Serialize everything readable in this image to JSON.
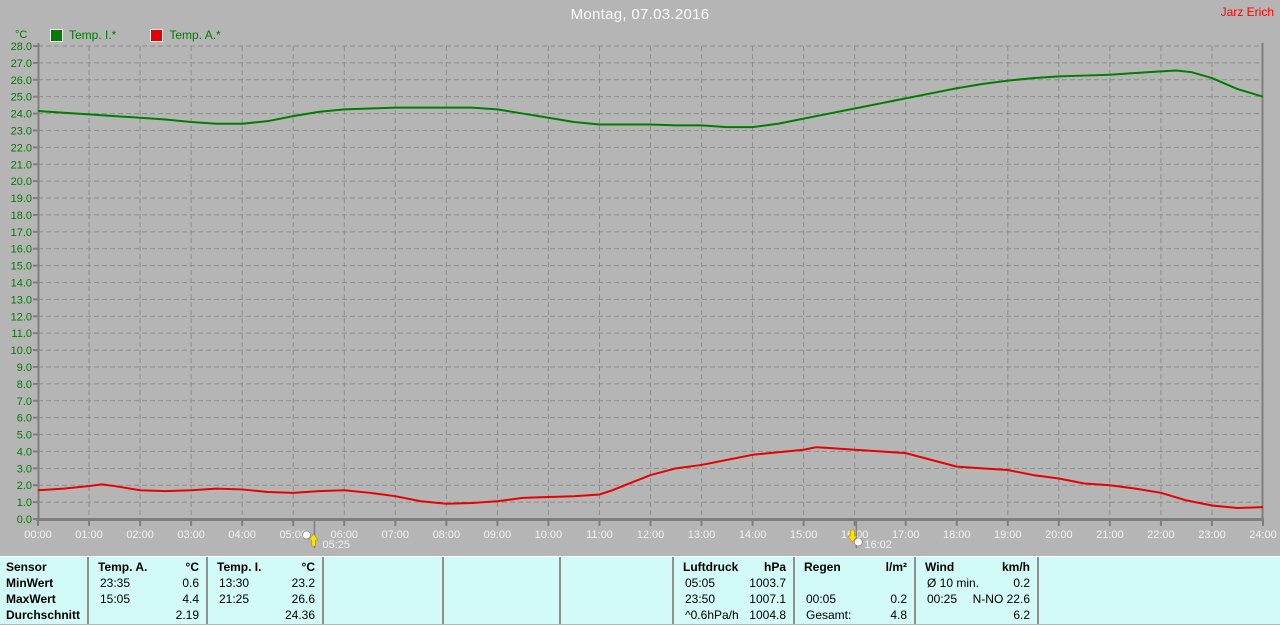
{
  "header": {
    "title": "Montag, 07.03.2016",
    "owner": "Jarz Erich"
  },
  "chart_data": {
    "type": "line",
    "title": "Montag, 07.03.2016",
    "unit": "°C",
    "ylabel": "°C",
    "ylim": [
      0,
      28
    ],
    "y_tick_step": 1.0,
    "grid": "dashed",
    "legend_position": "top-left",
    "x_hours_range": [
      0,
      24
    ],
    "x_tick_labels": [
      "00:00",
      "01:00",
      "02:00",
      "03:00",
      "04:00",
      "05:00",
      "06:00",
      "07:00",
      "08:00",
      "09:00",
      "10:00",
      "11:00",
      "12:00",
      "13:00",
      "14:00",
      "15:00",
      "16:00",
      "17:00",
      "18:00",
      "19:00",
      "20:00",
      "21:00",
      "22:00",
      "23:00",
      "24:00"
    ],
    "series": [
      {
        "name": "Temp. I.*",
        "color": "#007c00",
        "x": [
          0,
          0.5,
          1,
          1.5,
          2,
          2.5,
          3,
          3.5,
          4,
          4.5,
          5,
          5.5,
          6,
          6.5,
          7,
          7.5,
          8,
          8.5,
          9,
          9.5,
          10,
          10.5,
          11,
          11.5,
          12,
          12.5,
          13,
          13.5,
          14,
          14.5,
          15,
          15.5,
          16,
          16.5,
          17,
          17.5,
          18,
          18.5,
          19,
          19.5,
          20,
          20.5,
          21,
          21.5,
          22,
          22.3,
          22.6,
          23,
          23.5,
          24
        ],
        "values": [
          24.15,
          24.05,
          23.95,
          23.85,
          23.75,
          23.65,
          23.5,
          23.4,
          23.4,
          23.55,
          23.85,
          24.1,
          24.25,
          24.3,
          24.35,
          24.35,
          24.35,
          24.35,
          24.25,
          24.0,
          23.75,
          23.5,
          23.35,
          23.35,
          23.35,
          23.3,
          23.3,
          23.2,
          23.2,
          23.4,
          23.7,
          24.0,
          24.3,
          24.6,
          24.9,
          25.2,
          25.5,
          25.75,
          25.95,
          26.1,
          26.2,
          26.25,
          26.3,
          26.4,
          26.5,
          26.55,
          26.45,
          26.1,
          25.45,
          25.0
        ]
      },
      {
        "name": "Temp. A.*",
        "color": "#e60000",
        "x": [
          0,
          0.5,
          1,
          1.25,
          1.5,
          2,
          2.5,
          3,
          3.5,
          4,
          4.5,
          5,
          5.5,
          6,
          6.5,
          7,
          7.5,
          8,
          8.5,
          9,
          9.5,
          10,
          10.5,
          11,
          11.25,
          11.5,
          11.75,
          12,
          12.5,
          13,
          13.5,
          14,
          14.5,
          15,
          15.25,
          15.5,
          16,
          16.5,
          17,
          17.5,
          18,
          18.5,
          19,
          19.5,
          20,
          20.5,
          21,
          21.5,
          22,
          22.5,
          23,
          23.5,
          24
        ],
        "values": [
          1.7,
          1.8,
          1.95,
          2.05,
          1.95,
          1.7,
          1.65,
          1.7,
          1.8,
          1.75,
          1.6,
          1.55,
          1.65,
          1.7,
          1.55,
          1.35,
          1.05,
          0.9,
          0.95,
          1.05,
          1.25,
          1.3,
          1.35,
          1.45,
          1.7,
          2.0,
          2.3,
          2.6,
          3.0,
          3.2,
          3.5,
          3.8,
          3.95,
          4.1,
          4.25,
          4.2,
          4.1,
          4.0,
          3.9,
          3.5,
          3.1,
          3.0,
          2.9,
          2.6,
          2.4,
          2.1,
          2.0,
          1.8,
          1.55,
          1.1,
          0.8,
          0.65,
          0.7
        ]
      }
    ],
    "markers": [
      {
        "type": "sunrise",
        "time_label": "05:25",
        "hour": 5.4167
      },
      {
        "type": "sunset",
        "time_label": "16:02",
        "hour": 16.0333
      }
    ]
  },
  "stats_table": {
    "row_labels": [
      "Sensor",
      "MinWert",
      "MaxWert",
      "Durchschnitt"
    ],
    "columns": [
      {
        "id": "temp-a",
        "title": "Temp. A.",
        "unit": "°C",
        "rows": [
          [
            "23:35",
            "0.6"
          ],
          [
            "15:05",
            "4.4"
          ],
          [
            "",
            "2.19"
          ]
        ]
      },
      {
        "id": "temp-i",
        "title": "Temp. I.",
        "unit": "°C",
        "rows": [
          [
            "13:30",
            "23.2"
          ],
          [
            "21:25",
            "26.6"
          ],
          [
            "",
            "24.36"
          ]
        ]
      },
      {
        "id": "empty-1",
        "title": "",
        "unit": "",
        "rows": [
          [
            "",
            ""
          ],
          [
            "",
            ""
          ],
          [
            "",
            ""
          ]
        ]
      },
      {
        "id": "empty-2",
        "title": "",
        "unit": "",
        "rows": [
          [
            "",
            ""
          ],
          [
            "",
            ""
          ],
          [
            "",
            ""
          ]
        ]
      },
      {
        "id": "empty-3",
        "title": "",
        "unit": "",
        "rows": [
          [
            "",
            ""
          ],
          [
            "",
            ""
          ],
          [
            "",
            ""
          ]
        ]
      },
      {
        "id": "luftdruck",
        "title": "Luftdruck",
        "unit": "hPa",
        "rows": [
          [
            "05:05",
            "1003.7"
          ],
          [
            "23:50",
            "1007.1"
          ],
          [
            "^0.6hPa/h",
            "1004.8"
          ]
        ]
      },
      {
        "id": "regen",
        "title": "Regen",
        "unit": "l/m²",
        "rows": [
          [
            "",
            ""
          ],
          [
            "00:05",
            "0.2"
          ],
          [
            "Gesamt:",
            "4.8"
          ]
        ]
      },
      {
        "id": "wind",
        "title": "Wind",
        "unit": "km/h",
        "rows": [
          [
            "Ø 10 min.",
            "0.2"
          ],
          [
            "00:25",
            "N-NO 22.6"
          ],
          [
            "",
            "6.2"
          ]
        ]
      },
      {
        "id": "empty-4",
        "title": "",
        "unit": "",
        "rows": [
          [
            "",
            ""
          ],
          [
            "",
            ""
          ],
          [
            "",
            ""
          ]
        ]
      }
    ]
  },
  "colors": {
    "background": "#b5b5b5",
    "grid": "#8d8d8d",
    "axis": "#7f7f7f",
    "y_labels": "#007c00",
    "x_labels": "#f2f2f2",
    "title_text": "#ffffff",
    "owner_text": "#ff0000",
    "table_background": "#d2faf6",
    "marker_yellow": "#ffe000"
  }
}
